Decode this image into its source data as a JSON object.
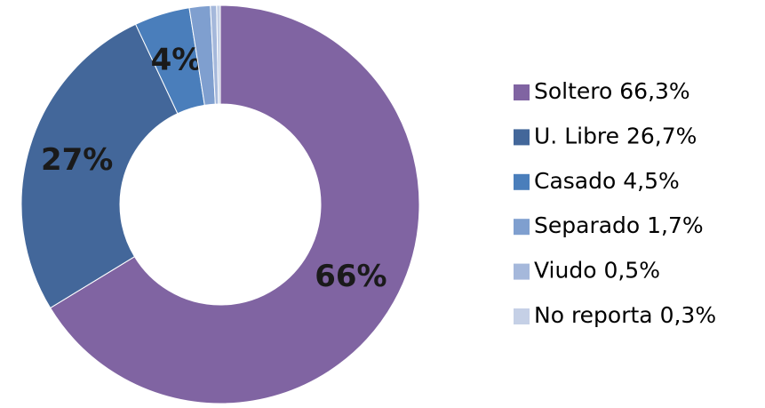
{
  "chart_data": {
    "type": "donut",
    "categories": [
      "Soltero 66,3%",
      "U. Libre 26,7%",
      "Casado 4,5%",
      "Separado 1,7%",
      "Viudo 0,5%",
      "No reporta 0,3%"
    ],
    "values": [
      66.3,
      26.7,
      4.5,
      1.7,
      0.5,
      0.3
    ],
    "value_labels": [
      "66%",
      "27%",
      "4%",
      null,
      null,
      null
    ],
    "colors": [
      "#8064a2",
      "#43679a",
      "#4a7ebb",
      "#7f9fcf",
      "#a5b8db",
      "#c5d0e6"
    ],
    "legend": "right"
  }
}
